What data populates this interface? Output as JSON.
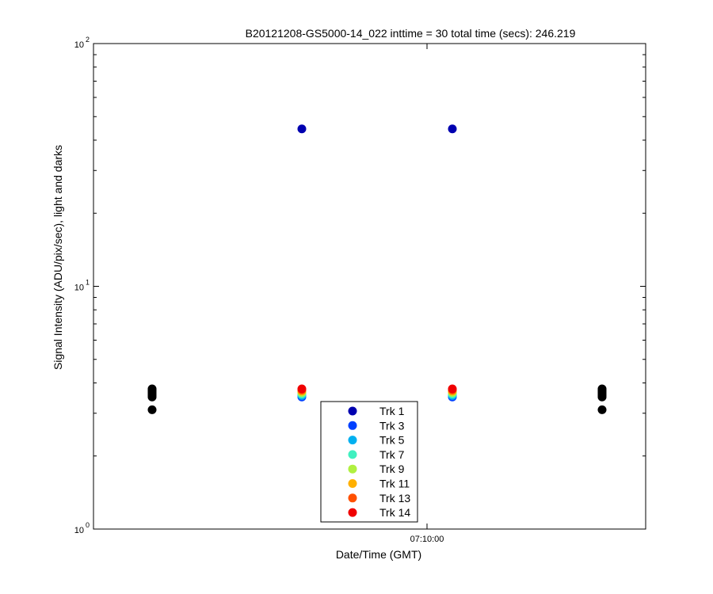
{
  "chart_data": {
    "type": "scatter",
    "title": "B20121208-GS5000-14_022 inttime = 30 total time (secs): 246.219",
    "xlabel": "Date/Time (GMT)",
    "ylabel": "Signal Intensity (ADU/pix/sec), light and darks",
    "y_scale": "log",
    "ylim": [
      1,
      100
    ],
    "y_ticks": [
      {
        "value": 1,
        "base": "10",
        "exp": "0"
      },
      {
        "value": 10,
        "base": "10",
        "exp": "1"
      },
      {
        "value": 100,
        "base": "10",
        "exp": "2"
      }
    ],
    "x_tick_label": "07:10:00",
    "grid": false,
    "legend_position": "bottom-center",
    "series": [
      {
        "name": "Trk 1",
        "color": "#0000b0",
        "values": [
          44.5,
          44.5
        ]
      },
      {
        "name": "Trk 3",
        "color": "#0040ff",
        "values": [
          3.5,
          3.5
        ]
      },
      {
        "name": "Trk 5",
        "color": "#00b0f0",
        "values": [
          3.55,
          3.55
        ]
      },
      {
        "name": "Trk 7",
        "color": "#40f0c0",
        "values": [
          3.6,
          3.6
        ]
      },
      {
        "name": "Trk 9",
        "color": "#b0f040",
        "values": [
          3.65,
          3.65
        ]
      },
      {
        "name": "Trk 11",
        "color": "#ffb000",
        "values": [
          3.7,
          3.7
        ]
      },
      {
        "name": "Trk 13",
        "color": "#ff5000",
        "values": [
          3.74,
          3.74
        ]
      },
      {
        "name": "Trk 14",
        "color": "#f00000",
        "values": [
          3.78,
          3.78
        ]
      }
    ],
    "darks": {
      "color": "#000000",
      "values": [
        3.1,
        3.5,
        3.55,
        3.6,
        3.65,
        3.7,
        3.74,
        3.78
      ]
    }
  }
}
